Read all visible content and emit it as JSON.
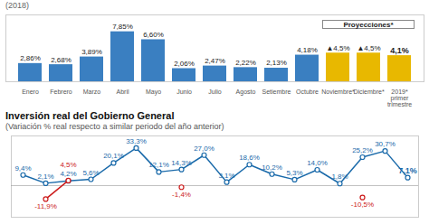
{
  "chart_data": [
    {
      "type": "bar",
      "title": "(2018)",
      "categories": [
        "Enero",
        "Febrero",
        "Marzo",
        "Abril",
        "Mayo",
        "Junio",
        "Julio",
        "Agosto",
        "Setiembre",
        "Octubre",
        "Noviembre*",
        "Diciembre*",
        "2019*\nprimer\ntrimestre"
      ],
      "values": [
        2.86,
        2.68,
        3.89,
        7.85,
        6.6,
        2.06,
        2.47,
        2.22,
        2.13,
        4.18,
        4.5,
        4.5,
        4.1
      ],
      "value_labels": [
        "2,86%",
        "2,68%",
        "3,89%",
        "7,85%",
        "6,60%",
        "2,06%",
        "2,47%",
        "2,22%",
        "2,13%",
        "4,18%",
        "▲4,5%",
        "▲4,5%",
        "4,1%"
      ],
      "colors": [
        "#3a7fc1",
        "#3a7fc1",
        "#3a7fc1",
        "#3a7fc1",
        "#3a7fc1",
        "#3a7fc1",
        "#3a7fc1",
        "#3a7fc1",
        "#3a7fc1",
        "#3a7fc1",
        "#e8b800",
        "#e8b800",
        "#e8b800"
      ],
      "ylim": [
        0,
        10.5
      ],
      "data_labels": true,
      "tick_labels": "x",
      "annotations": [
        {
          "text": "Proyecciones*",
          "categories": [
            "Noviembre*",
            "Diciembre*",
            "2019*\nprimer\ntrimestre"
          ]
        }
      ]
    },
    {
      "type": "line",
      "title": "Inversión real del Gobierno General",
      "subtitle": "(Variación % real respecto a similar periodo del año anterior)",
      "categories": [
        null,
        null,
        null,
        null,
        null,
        null,
        null,
        null,
        null,
        null,
        null,
        null,
        null,
        null,
        null,
        null,
        null,
        null
      ],
      "series": [
        {
          "color": "#1a6aaa",
          "marker": "circle",
          "values": [
            9.4,
            2.1,
            4.2,
            5.6,
            20.1,
            33.3,
            12.1,
            14.3,
            27.0,
            3.1,
            18.6,
            10.2,
            5.3,
            14.0,
            1.8,
            25.2,
            30.7,
            7.1
          ],
          "value_labels": [
            "9,4%",
            "2,1%",
            "4,2%",
            "5,6%",
            "20,1%",
            "33,3%",
            "12,1%",
            "14,3%",
            "27,0%",
            "3,1%",
            "18,6%",
            "10,2%",
            "5,3%",
            "14,0%",
            "1,8%",
            "25,2%",
            "30,7%",
            "7,1%"
          ]
        },
        {
          "color": "#cc1a1a",
          "marker": "circle",
          "values": [
            null,
            -11.9,
            4.5,
            null,
            null,
            null,
            null,
            -1.4,
            null,
            null,
            null,
            null,
            null,
            null,
            null,
            -10.5,
            null,
            null
          ],
          "value_labels": [
            null,
            "-11,9%",
            "4,5%",
            null,
            null,
            null,
            null,
            "-1,4%",
            null,
            null,
            null,
            null,
            null,
            null,
            null,
            "-10,5%",
            null,
            null
          ]
        }
      ],
      "ylim": [
        -28,
        44
      ],
      "yticks": [
        0
      ],
      "grid": true,
      "tick_labels": false,
      "data_labels": true
    }
  ]
}
